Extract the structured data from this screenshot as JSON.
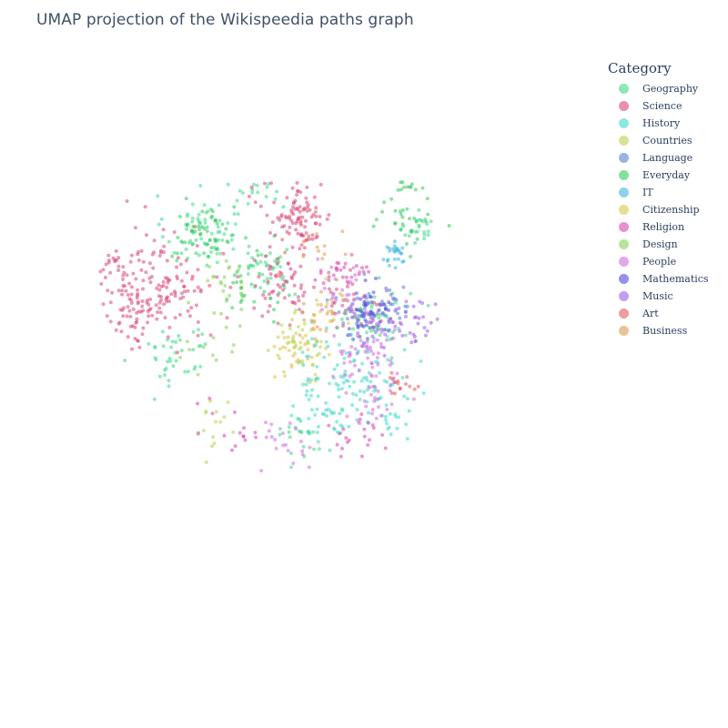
{
  "chart_data": {
    "type": "scatter",
    "title": "UMAP projection of the Wikispeedia paths graph",
    "xlabel": "",
    "ylabel": "",
    "grid": false,
    "axes_visible": false,
    "legend": {
      "title": "Category",
      "placement": "top-right"
    },
    "xlim": [
      0,
      10
    ],
    "ylim": [
      0,
      10
    ],
    "series": [
      {
        "name": "Geography",
        "color": "#3fd987",
        "clusters": [
          [
            2.6,
            6.9,
            0.35,
            70
          ],
          [
            3.9,
            6.2,
            0.3,
            40
          ],
          [
            6.1,
            5.2,
            0.3,
            40
          ],
          [
            2.1,
            4.5,
            0.35,
            40
          ],
          [
            4.6,
            2.9,
            0.3,
            20
          ],
          [
            6.9,
            6.9,
            0.15,
            25
          ],
          [
            3.7,
            7.8,
            0.25,
            25
          ]
        ]
      },
      {
        "name": "Science",
        "color": "#d9477a",
        "clusters": [
          [
            1.8,
            5.8,
            0.6,
            150
          ],
          [
            4.5,
            7.2,
            0.35,
            90
          ],
          [
            4.2,
            5.8,
            0.35,
            60
          ],
          [
            1.3,
            5.4,
            0.25,
            30
          ],
          [
            5.5,
            5.6,
            0.3,
            30
          ],
          [
            0.9,
            6.1,
            0.2,
            20
          ]
        ]
      },
      {
        "name": "History",
        "color": "#40d8c8",
        "clusters": [
          [
            5.5,
            4.2,
            0.5,
            90
          ],
          [
            5.1,
            3.4,
            0.35,
            40
          ],
          [
            6.3,
            3.4,
            0.3,
            30
          ]
        ]
      },
      {
        "name": "Countries",
        "color": "#b6d44c",
        "clusters": [
          [
            4.5,
            4.7,
            0.25,
            35
          ],
          [
            3.0,
            3.2,
            0.3,
            15
          ]
        ]
      },
      {
        "name": "Language",
        "color": "#5a7ed3",
        "clusters": [
          [
            5.7,
            5.2,
            0.3,
            35
          ],
          [
            6.3,
            5.4,
            0.25,
            25
          ]
        ]
      },
      {
        "name": "Everyday",
        "color": "#34c95b",
        "clusters": [
          [
            2.7,
            6.8,
            0.3,
            45
          ],
          [
            6.6,
            7.2,
            0.3,
            30
          ],
          [
            3.5,
            5.8,
            0.3,
            30
          ],
          [
            6.6,
            7.8,
            0.1,
            12
          ]
        ]
      },
      {
        "name": "IT",
        "color": "#3ab6e0",
        "clusters": [
          [
            6.4,
            6.4,
            0.15,
            25
          ]
        ]
      },
      {
        "name": "Citizenship",
        "color": "#d8c64a",
        "clusters": [
          [
            4.6,
            4.6,
            0.25,
            35
          ],
          [
            5.0,
            5.4,
            0.25,
            15
          ]
        ]
      },
      {
        "name": "Religion",
        "color": "#d744b3",
        "clusters": [
          [
            5.4,
            6.0,
            0.25,
            25
          ],
          [
            5.6,
            2.9,
            0.3,
            20
          ],
          [
            3.2,
            3.0,
            0.3,
            15
          ]
        ]
      },
      {
        "name": "Design",
        "color": "#86d255",
        "clusters": [
          [
            3.1,
            6.0,
            0.3,
            20
          ],
          [
            2.8,
            4.8,
            0.3,
            15
          ]
        ]
      },
      {
        "name": "People",
        "color": "#cf6be0",
        "clusters": [
          [
            5.9,
            4.6,
            0.35,
            50
          ],
          [
            6.0,
            3.6,
            0.3,
            30
          ],
          [
            4.3,
            2.8,
            0.3,
            20
          ],
          [
            5.4,
            5.7,
            0.3,
            20
          ]
        ]
      },
      {
        "name": "Mathematics",
        "color": "#4d48d8",
        "clusters": [
          [
            5.9,
            5.3,
            0.2,
            40
          ]
        ]
      },
      {
        "name": "Music",
        "color": "#9c5ce0",
        "clusters": [
          [
            6.2,
            5.0,
            0.35,
            40
          ],
          [
            6.8,
            5.1,
            0.25,
            20
          ]
        ]
      },
      {
        "name": "Art",
        "color": "#e05a5a",
        "clusters": [
          [
            6.5,
            3.9,
            0.15,
            15
          ],
          [
            4.6,
            7.0,
            0.25,
            15
          ]
        ]
      },
      {
        "name": "Business",
        "color": "#e09a55",
        "clusters": [
          [
            5.0,
            5.3,
            0.25,
            20
          ],
          [
            4.9,
            6.6,
            0.2,
            10
          ]
        ]
      }
    ]
  }
}
